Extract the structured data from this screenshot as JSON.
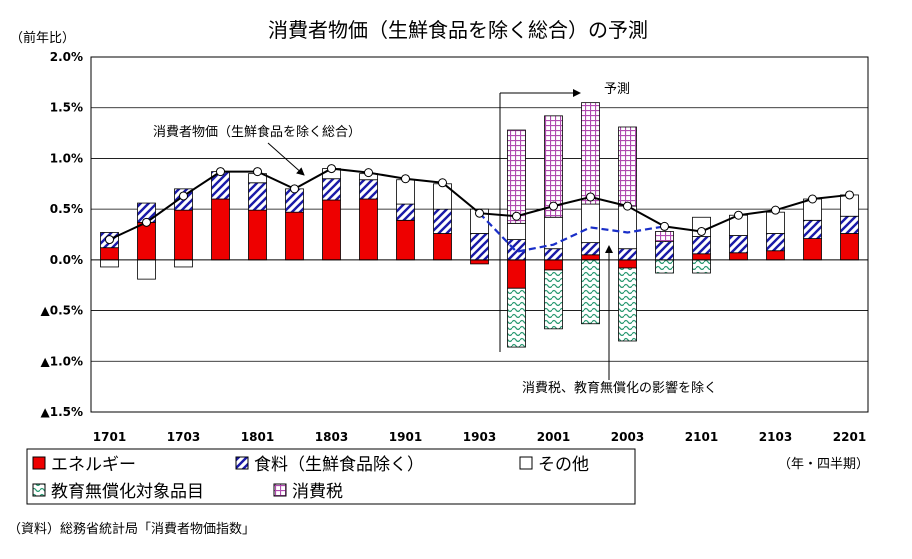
{
  "chart_data": {
    "type": "bar",
    "title": "消費者物価（生鮮食品を除く総合）の予測",
    "ylabel": "（前年比）",
    "xunit": "（年・四半期）",
    "source": "（資料）総務省統計局「消費者物価指数」",
    "ylim": [
      -1.5,
      2.0
    ],
    "yticks": [
      {
        "value": 2.0,
        "label": "2.0%"
      },
      {
        "value": 1.5,
        "label": "1.5%"
      },
      {
        "value": 1.0,
        "label": "1.0%"
      },
      {
        "value": 0.5,
        "label": "0.5%"
      },
      {
        "value": 0.0,
        "label": "0.0%"
      },
      {
        "value": -0.5,
        "label": "▲0.5%"
      },
      {
        "value": -1.0,
        "label": "▲1.0%"
      },
      {
        "value": -1.5,
        "label": "▲1.5%"
      }
    ],
    "categories": [
      "1701",
      "1702",
      "1703",
      "1704",
      "1801",
      "1802",
      "1803",
      "1804",
      "1901",
      "1902",
      "1903",
      "1904",
      "2001",
      "2002",
      "2003",
      "2004",
      "2101",
      "2102",
      "2103",
      "2104",
      "2201"
    ],
    "xtick_labels": [
      "1701",
      "1703",
      "1801",
      "1803",
      "1901",
      "1903",
      "2001",
      "2003",
      "2101",
      "2103",
      "2201"
    ],
    "bar_series": [
      {
        "name": "エネルギー",
        "color": "#ee0000",
        "values": [
          0.12,
          0.37,
          0.49,
          0.6,
          0.49,
          0.47,
          0.59,
          0.6,
          0.39,
          0.26,
          -0.04,
          -0.28,
          -0.1,
          0.05,
          -0.08,
          0.0,
          0.06,
          0.07,
          0.09,
          0.21,
          0.26
        ]
      },
      {
        "name": "食料（生鮮食品除く）",
        "color": "#1a1aa8",
        "values": [
          0.15,
          0.19,
          0.21,
          0.27,
          0.27,
          0.23,
          0.21,
          0.19,
          0.16,
          0.24,
          0.26,
          0.2,
          0.11,
          0.12,
          0.11,
          0.18,
          0.17,
          0.17,
          0.17,
          0.18,
          0.17
        ]
      },
      {
        "name": "その他",
        "color": "#ffffff",
        "values": [
          -0.07,
          -0.19,
          -0.07,
          0.0,
          0.09,
          0.0,
          0.1,
          0.06,
          0.24,
          0.25,
          0.24,
          0.16,
          0.31,
          0.38,
          0.42,
          0.0,
          0.19,
          0.2,
          0.21,
          0.21,
          0.21
        ]
      },
      {
        "name": "教育無償化対象品目",
        "color": "#8fd6b4",
        "values": [
          0,
          0,
          0,
          0,
          0,
          0,
          0,
          0,
          0,
          0,
          0,
          -0.58,
          -0.58,
          -0.63,
          -0.72,
          -0.13,
          -0.13,
          0,
          0,
          0,
          0
        ]
      },
      {
        "name": "消費税",
        "color": "#cc66cc",
        "values": [
          0,
          0,
          0,
          0,
          0,
          0,
          0,
          0,
          0,
          0,
          0,
          0.92,
          1.0,
          1.0,
          0.78,
          0.1,
          0,
          0,
          0,
          0,
          0
        ]
      }
    ],
    "line_series": [
      {
        "name": "消費者物価（生鮮食品を除く総合）",
        "values": [
          0.2,
          0.37,
          0.63,
          0.87,
          0.87,
          0.7,
          0.9,
          0.86,
          0.8,
          0.76,
          0.46,
          0.43,
          0.53,
          0.62,
          0.53,
          0.33,
          0.28,
          0.44,
          0.49,
          0.6,
          0.64
        ]
      }
    ],
    "excl_series": {
      "name": "消費税、教育無償化の影響を除く",
      "start_index": 10,
      "end_index": 15,
      "values": [
        0.46,
        0.08,
        0.15,
        0.32,
        0.27,
        0.33
      ]
    },
    "annotations": {
      "forecast": "予測",
      "line_label": "消費者物価（生鮮食品を除く総合）",
      "excl_label": "消費税、教育無償化の影響を除く"
    },
    "legend": [
      {
        "label": "エネルギー",
        "series": "エネルギー"
      },
      {
        "label": "食料（生鮮食品除く）",
        "series": "食料（生鮮食品除く）"
      },
      {
        "label": "その他",
        "series": "その他"
      },
      {
        "label": "教育無償化対象品目",
        "series": "教育無償化対象品目"
      },
      {
        "label": "消費税",
        "series": "消費税"
      }
    ],
    "grid": true,
    "legend_position": "bottom"
  }
}
